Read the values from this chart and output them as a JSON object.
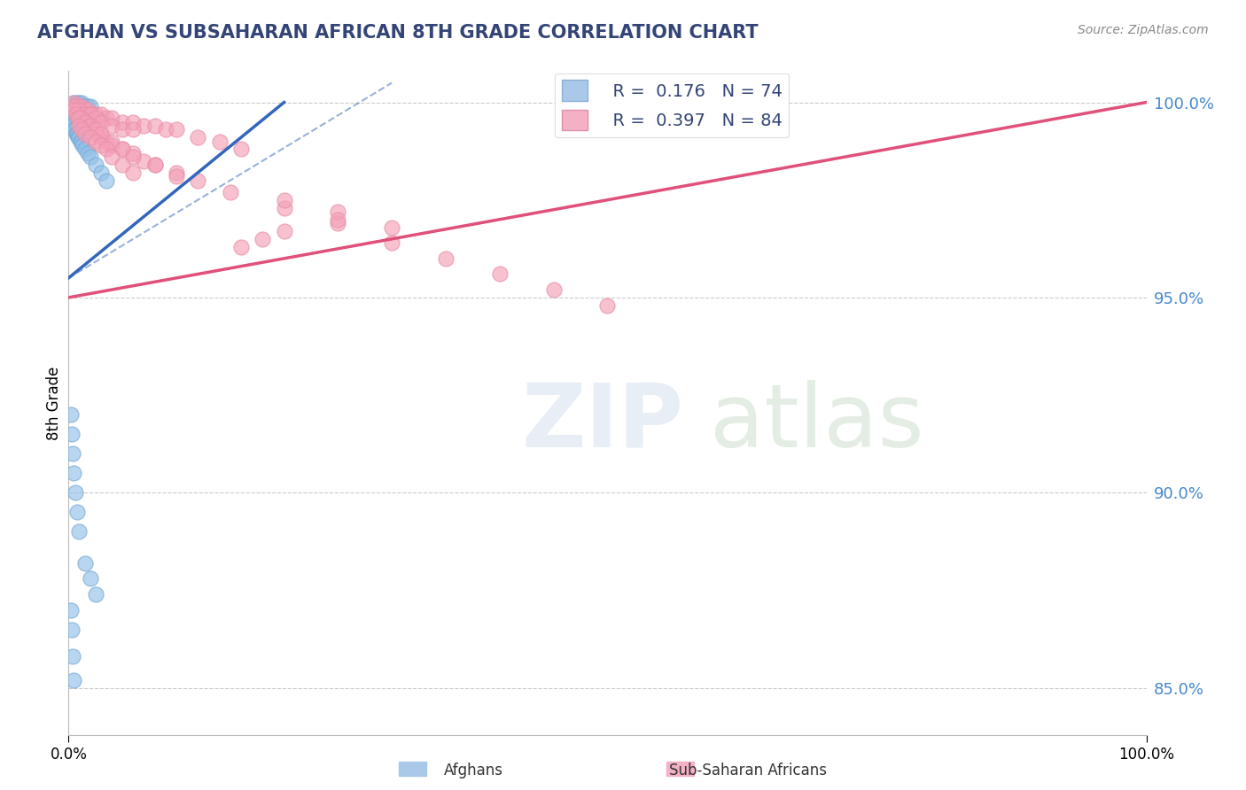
{
  "title": "AFGHAN VS SUBSAHARAN AFRICAN 8TH GRADE CORRELATION CHART",
  "source": "Source: ZipAtlas.com",
  "ylabel": "8th Grade",
  "xlim": [
    0.0,
    1.0
  ],
  "ylim": [
    0.838,
    1.008
  ],
  "blue_color": "#92c0e8",
  "pink_color": "#f4a0b8",
  "blue_line_color": "#3366bb",
  "pink_line_color": "#e0507a",
  "blue_marker_edge": "#7aaad4",
  "pink_marker_edge": "#e890a8",
  "blue_scatter_x": [
    0.005,
    0.008,
    0.01,
    0.01,
    0.012,
    0.013,
    0.015,
    0.015,
    0.018,
    0.02,
    0.005,
    0.006,
    0.007,
    0.009,
    0.011,
    0.013,
    0.016,
    0.019,
    0.021,
    0.023,
    0.003,
    0.004,
    0.005,
    0.006,
    0.007,
    0.008,
    0.01,
    0.012,
    0.014,
    0.017,
    0.002,
    0.003,
    0.004,
    0.005,
    0.006,
    0.007,
    0.008,
    0.009,
    0.01,
    0.011,
    0.002,
    0.003,
    0.004,
    0.005,
    0.006,
    0.007,
    0.008,
    0.009,
    0.01,
    0.011,
    0.012,
    0.013,
    0.015,
    0.018,
    0.02,
    0.025,
    0.03,
    0.035,
    0.002,
    0.003,
    0.004,
    0.005,
    0.006,
    0.008,
    0.01,
    0.015,
    0.02,
    0.025,
    0.002,
    0.003,
    0.004,
    0.005
  ],
  "blue_scatter_y": [
    1.0,
    1.0,
    1.0,
    0.999,
    1.0,
    0.999,
    0.999,
    0.998,
    0.999,
    0.999,
    0.999,
    0.999,
    0.998,
    0.998,
    0.998,
    0.997,
    0.997,
    0.997,
    0.996,
    0.996,
    0.998,
    0.997,
    0.997,
    0.996,
    0.996,
    0.996,
    0.995,
    0.995,
    0.994,
    0.994,
    0.996,
    0.996,
    0.995,
    0.995,
    0.995,
    0.994,
    0.994,
    0.993,
    0.993,
    0.993,
    0.995,
    0.994,
    0.994,
    0.993,
    0.993,
    0.992,
    0.992,
    0.991,
    0.991,
    0.99,
    0.99,
    0.989,
    0.988,
    0.987,
    0.986,
    0.984,
    0.982,
    0.98,
    0.92,
    0.915,
    0.91,
    0.905,
    0.9,
    0.895,
    0.89,
    0.882,
    0.878,
    0.874,
    0.87,
    0.865,
    0.858,
    0.852
  ],
  "pink_scatter_x": [
    0.005,
    0.007,
    0.01,
    0.012,
    0.015,
    0.018,
    0.02,
    0.025,
    0.03,
    0.035,
    0.04,
    0.05,
    0.06,
    0.07,
    0.08,
    0.09,
    0.1,
    0.12,
    0.14,
    0.16,
    0.005,
    0.008,
    0.01,
    0.015,
    0.02,
    0.025,
    0.03,
    0.04,
    0.05,
    0.06,
    0.005,
    0.007,
    0.009,
    0.012,
    0.015,
    0.018,
    0.022,
    0.026,
    0.03,
    0.035,
    0.04,
    0.05,
    0.06,
    0.07,
    0.08,
    0.1,
    0.12,
    0.01,
    0.015,
    0.02,
    0.025,
    0.03,
    0.04,
    0.05,
    0.06,
    0.08,
    0.1,
    0.15,
    0.2,
    0.25,
    0.3,
    0.35,
    0.4,
    0.45,
    0.5,
    0.2,
    0.25,
    0.3,
    0.01,
    0.012,
    0.015,
    0.02,
    0.025,
    0.03,
    0.035,
    0.04,
    0.05,
    0.06,
    0.25,
    0.2,
    0.18,
    0.16
  ],
  "pink_scatter_y": [
    1.0,
    0.999,
    0.999,
    0.999,
    0.998,
    0.998,
    0.997,
    0.997,
    0.997,
    0.996,
    0.996,
    0.995,
    0.995,
    0.994,
    0.994,
    0.993,
    0.993,
    0.991,
    0.99,
    0.988,
    0.999,
    0.998,
    0.998,
    0.997,
    0.997,
    0.996,
    0.995,
    0.994,
    0.993,
    0.993,
    0.998,
    0.997,
    0.996,
    0.996,
    0.995,
    0.994,
    0.993,
    0.992,
    0.991,
    0.99,
    0.989,
    0.988,
    0.987,
    0.985,
    0.984,
    0.982,
    0.98,
    0.996,
    0.995,
    0.994,
    0.993,
    0.992,
    0.99,
    0.988,
    0.986,
    0.984,
    0.981,
    0.977,
    0.973,
    0.969,
    0.964,
    0.96,
    0.956,
    0.952,
    0.948,
    0.975,
    0.972,
    0.968,
    0.994,
    0.993,
    0.992,
    0.991,
    0.99,
    0.989,
    0.988,
    0.986,
    0.984,
    0.982,
    0.97,
    0.967,
    0.965,
    0.963
  ],
  "pink_trendline_x": [
    0.0,
    1.0
  ],
  "pink_trendline_y": [
    0.95,
    1.0
  ],
  "blue_trendline_x": [
    0.0,
    0.2
  ],
  "blue_trendline_y": [
    0.955,
    1.0
  ],
  "yticks": [
    0.85,
    0.9,
    0.95,
    1.0
  ],
  "ytick_labels": [
    "85.0%",
    "90.0%",
    "95.0%",
    "100.0%"
  ]
}
